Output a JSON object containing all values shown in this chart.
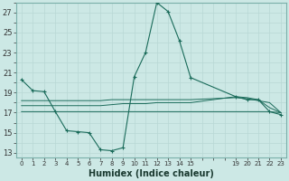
{
  "xlabel": "Humidex (Indice chaleur)",
  "bg_color": "#cce8e5",
  "grid_color": "#b8d8d5",
  "line_color": "#1a6b5a",
  "ylim": [
    12.5,
    28.0
  ],
  "xlim": [
    -0.5,
    23.5
  ],
  "yticks": [
    13,
    15,
    17,
    19,
    21,
    23,
    25,
    27
  ],
  "xticks": [
    0,
    1,
    2,
    3,
    4,
    5,
    6,
    7,
    8,
    9,
    10,
    11,
    12,
    13,
    14,
    15,
    19,
    20,
    21,
    22,
    23
  ],
  "xtick_labels": [
    "0",
    "1",
    "2",
    "3",
    "4",
    "5",
    "6",
    "7",
    "8",
    "9",
    "10",
    "11",
    "12",
    "13",
    "14",
    "15",
    "19",
    "20",
    "21",
    "22",
    "23"
  ],
  "line1_x": [
    0,
    1,
    2,
    3,
    4,
    5,
    6,
    7,
    8,
    9,
    10,
    11,
    12,
    13,
    14,
    15,
    19,
    20,
    21,
    22,
    23
  ],
  "line1_y": [
    20.3,
    19.2,
    19.1,
    17.1,
    15.2,
    15.1,
    15.0,
    13.3,
    13.2,
    13.5,
    20.6,
    23.0,
    28.0,
    27.1,
    24.2,
    20.5,
    18.6,
    18.3,
    18.3,
    17.1,
    16.8
  ],
  "line2_x": [
    0,
    1,
    2,
    3,
    4,
    5,
    6,
    7,
    8,
    9,
    10,
    11,
    12,
    13,
    14,
    15,
    19,
    20,
    21,
    22,
    23
  ],
  "line2_y": [
    18.2,
    18.2,
    18.2,
    18.2,
    18.2,
    18.2,
    18.2,
    18.2,
    18.3,
    18.3,
    18.3,
    18.3,
    18.3,
    18.3,
    18.3,
    18.3,
    18.5,
    18.4,
    18.2,
    18.0,
    17.0
  ],
  "line3_x": [
    0,
    1,
    2,
    3,
    4,
    5,
    6,
    7,
    8,
    9,
    10,
    11,
    12,
    13,
    14,
    15,
    19,
    20,
    21,
    22,
    23
  ],
  "line3_y": [
    17.1,
    17.1,
    17.1,
    17.1,
    17.1,
    17.1,
    17.1,
    17.1,
    17.1,
    17.1,
    17.1,
    17.1,
    17.1,
    17.1,
    17.1,
    17.1,
    17.1,
    17.1,
    17.1,
    17.1,
    17.0
  ],
  "line4_x": [
    0,
    1,
    2,
    3,
    4,
    5,
    6,
    7,
    8,
    9,
    10,
    11,
    12,
    13,
    14,
    15,
    19,
    20,
    21,
    22,
    23
  ],
  "line4_y": [
    17.7,
    17.7,
    17.7,
    17.7,
    17.7,
    17.7,
    17.7,
    17.7,
    17.8,
    17.9,
    17.9,
    17.9,
    18.0,
    18.0,
    18.0,
    18.0,
    18.6,
    18.5,
    18.3,
    17.5,
    17.0
  ]
}
